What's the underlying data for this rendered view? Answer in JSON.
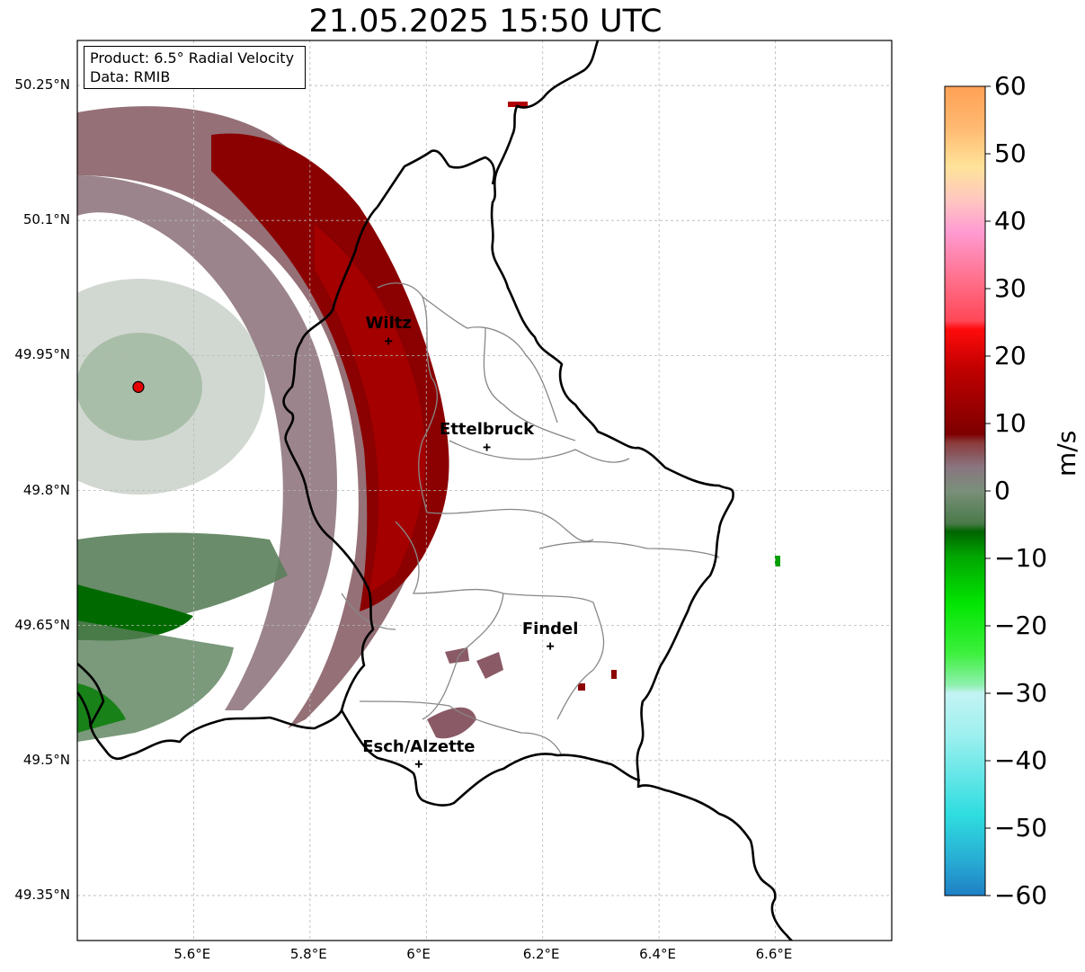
{
  "title": "21.05.2025 15:50 UTC",
  "info": {
    "product": "Product: 6.5° Radial Velocity",
    "data": "Data: RMIB"
  },
  "map": {
    "extent_lon": [
      5.4,
      6.8
    ],
    "extent_lat": [
      49.3,
      50.3
    ],
    "lat_ticks": [
      {
        "value": 50.25,
        "label": "50.25°N"
      },
      {
        "value": 50.1,
        "label": "50.1°N"
      },
      {
        "value": 49.95,
        "label": "49.95°N"
      },
      {
        "value": 49.8,
        "label": "49.8°N"
      },
      {
        "value": 49.65,
        "label": "49.65°N"
      },
      {
        "value": 49.5,
        "label": "49.5°N"
      },
      {
        "value": 49.35,
        "label": "49.35°N"
      }
    ],
    "lon_ticks": [
      {
        "value": 5.6,
        "label": "5.6°E"
      },
      {
        "value": 5.8,
        "label": "5.8°E"
      },
      {
        "value": 6.0,
        "label": "6°E"
      },
      {
        "value": 6.2,
        "label": "6.2°E"
      },
      {
        "value": 6.4,
        "label": "6.4°E"
      },
      {
        "value": 6.6,
        "label": "6.6°E"
      }
    ],
    "radar_site": {
      "lon": 5.505,
      "lat": 49.915
    },
    "cities": [
      {
        "name": "Wiltz",
        "lon": 5.935,
        "lat": 49.966
      },
      {
        "name": "Ettelbruck",
        "lon": 6.104,
        "lat": 49.848
      },
      {
        "name": "Findel",
        "lon": 6.213,
        "lat": 49.627
      },
      {
        "name": "Esch/Alzette",
        "lon": 5.987,
        "lat": 49.496
      }
    ]
  },
  "colorbar": {
    "unit": "m/s",
    "min": -60,
    "max": 60,
    "ticks": [
      60,
      50,
      40,
      30,
      20,
      10,
      0,
      -10,
      -20,
      -30,
      -40,
      -50,
      -60
    ],
    "tick_labels": [
      "60",
      "50",
      "40",
      "30",
      "20",
      "10",
      "0",
      "−10",
      "−20",
      "−30",
      "−40",
      "−50",
      "−60"
    ]
  }
}
